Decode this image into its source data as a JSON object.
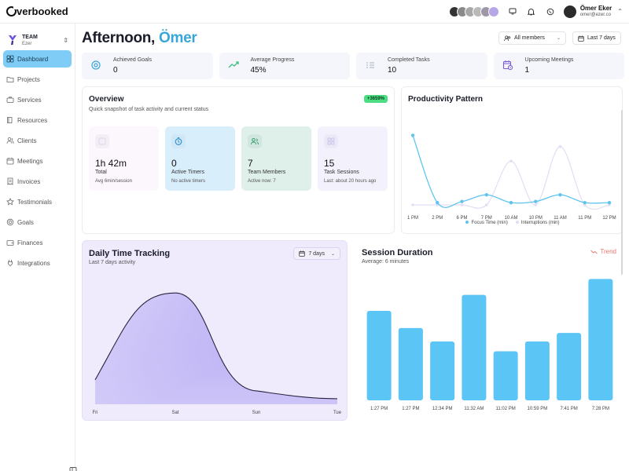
{
  "app": {
    "logo_text": "verbooked"
  },
  "user": {
    "name": "Ömer Eker",
    "email": "omer@ezer.co"
  },
  "team": {
    "name": "TEAM",
    "sub": "Ezer"
  },
  "nav": [
    {
      "label": "Dashboard",
      "icon": "dashboard-icon",
      "active": true
    },
    {
      "label": "Projects",
      "icon": "folder-icon"
    },
    {
      "label": "Services",
      "icon": "briefcase-icon"
    },
    {
      "label": "Resources",
      "icon": "book-icon"
    },
    {
      "label": "Clients",
      "icon": "users-icon"
    },
    {
      "label": "Meetings",
      "icon": "calendar-icon"
    },
    {
      "label": "Invoices",
      "icon": "invoice-icon"
    },
    {
      "label": "Testimonials",
      "icon": "star-icon"
    },
    {
      "label": "Goals",
      "icon": "target-icon"
    },
    {
      "label": "Finances",
      "icon": "wallet-icon"
    },
    {
      "label": "Integrations",
      "icon": "plug-icon"
    }
  ],
  "greeting": {
    "prefix": "Afternoon, ",
    "name": "Ömer"
  },
  "filters": {
    "members": "All members",
    "range": "Last 7 days"
  },
  "stats": [
    {
      "label": "Achieved Goals",
      "value": "0",
      "icon": "target-icon"
    },
    {
      "label": "Average Progress",
      "value": "45%",
      "icon": "trend-up-icon"
    },
    {
      "label": "Completed Tasks",
      "value": "10",
      "icon": "list-icon"
    },
    {
      "label": "Upcoming Meetings",
      "value": "1",
      "icon": "calendar-clock-icon"
    }
  ],
  "overview": {
    "title": "Overview",
    "subtitle": "Quick snapshot of task activity and current status",
    "badge": "+3659%",
    "cards": [
      {
        "value": "1h 42m",
        "label": "Total",
        "note": "Avg 6min/session",
        "bg": "#fbf7fd"
      },
      {
        "value": "0",
        "label": "Active Timers",
        "note": "No active timers",
        "bg": "#d9eefb"
      },
      {
        "value": "7",
        "label": "Team Members",
        "note": "Active now: 7",
        "bg": "#dff0ea"
      },
      {
        "value": "15",
        "label": "Task Sessions",
        "note": "Last: about 20 hours ago",
        "bg": "#f3f2fc"
      }
    ]
  },
  "productivity": {
    "title": "Productivity Pattern",
    "legend_focus": "Focus Time (min)",
    "legend_interrupt": "Interruptions (min)"
  },
  "daily": {
    "title": "Daily Time Tracking",
    "subtitle": "Last 7 days activity",
    "select": "7 days"
  },
  "session": {
    "title": "Session Duration",
    "subtitle": "Average: 6 minutes",
    "trend": "Trend"
  },
  "chart_data": [
    {
      "type": "line",
      "title": "Productivity Pattern",
      "x": [
        "1 PM",
        "2 PM",
        "6 PM",
        "7 PM",
        "10 AM",
        "10 PM",
        "11 AM",
        "11 PM",
        "12 PM"
      ],
      "series": [
        {
          "name": "Focus Time (min)",
          "values": [
            62,
            2,
            3,
            9,
            2,
            3,
            9,
            2,
            2
          ],
          "color": "#5ec4ef"
        },
        {
          "name": "Interruptions (min)",
          "values": [
            0,
            0,
            0,
            0,
            39,
            0,
            52,
            0,
            0
          ],
          "color": "#e4ddf3"
        }
      ],
      "ylim": [
        0,
        70
      ],
      "grid": false,
      "legend": "bottom"
    },
    {
      "type": "area",
      "title": "Daily Time Tracking",
      "categories": [
        "Fri",
        "Sat",
        "Sun",
        "Tue"
      ],
      "values": [
        22,
        100,
        12,
        5
      ],
      "ylim": [
        0,
        110
      ],
      "color": "#b3a9f3"
    },
    {
      "type": "bar",
      "title": "Session Duration",
      "categories": [
        "1:27 PM",
        "1:27 PM",
        "12:34 PM",
        "11:32 AM",
        "11:02 PM",
        "10:59 PM",
        "7:41 PM",
        "7:28 PM"
      ],
      "values": [
        7.3,
        5.9,
        4.8,
        8.6,
        4.0,
        4.8,
        5.5,
        9.9
      ],
      "ylim": [
        0,
        10.5
      ],
      "color": "#5bc5f6"
    }
  ]
}
